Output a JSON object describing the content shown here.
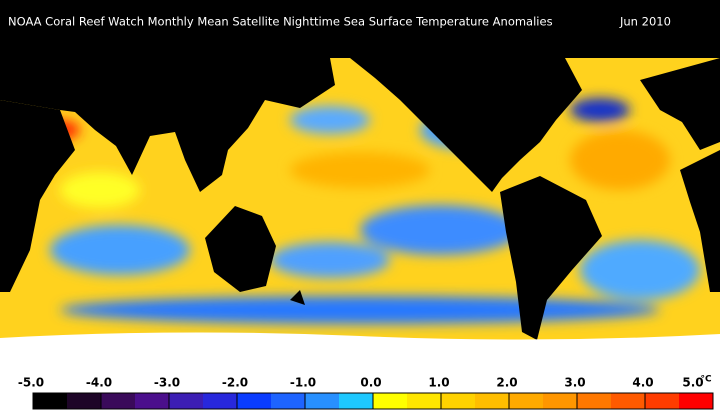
{
  "header": {
    "title": "NOAA Coral Reef Watch Monthly Mean Satellite Nighttime Sea Surface Temperature Anomalies",
    "date": "Jun 2010"
  },
  "colorbar": {
    "ticks": [
      {
        "value": -5,
        "label": "-5.0"
      },
      {
        "value": -4,
        "label": "-4.0"
      },
      {
        "value": -3,
        "label": "-3.0"
      },
      {
        "value": -2,
        "label": "-2.0"
      },
      {
        "value": -1,
        "label": "-1.0"
      },
      {
        "value": 0,
        "label": "0.0"
      },
      {
        "value": 1,
        "label": "1.0"
      },
      {
        "value": 2,
        "label": "2.0"
      },
      {
        "value": 3,
        "label": "3.0"
      },
      {
        "value": 4,
        "label": "4.0"
      },
      {
        "value": 5,
        "label": "5.0"
      }
    ],
    "unit": "°C",
    "colors": [
      "#000000",
      "#1e0528",
      "#3a0a5a",
      "#4b0f8c",
      "#3c1eb4",
      "#2828dc",
      "#0a3cff",
      "#1e64ff",
      "#2890ff",
      "#1ec8ff",
      "#ffff00",
      "#ffe600",
      "#ffd200",
      "#ffbe00",
      "#ffaa00",
      "#ff9600",
      "#ff7800",
      "#ff5a00",
      "#ff3c00",
      "#ff0000"
    ]
  }
}
